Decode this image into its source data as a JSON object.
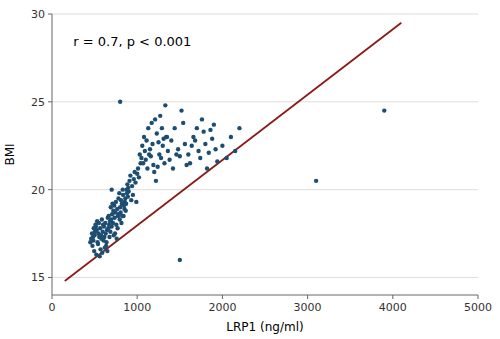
{
  "chart_data": {
    "type": "scatter",
    "annotation": "r = 0.7, p < 0.001",
    "xlabel": "LRP1 (ng/ml)",
    "ylabel": "BMI",
    "xlim": [
      0,
      5000
    ],
    "ylim": [
      14,
      30
    ],
    "xticks": [
      0,
      1000,
      2000,
      3000,
      4000,
      5000
    ],
    "yticks": [
      15,
      20,
      25,
      30
    ],
    "grid": "y",
    "series": [
      {
        "type": "scatter",
        "color": "#1d4e72",
        "x": [
          450,
          460,
          470,
          475,
          480,
          485,
          490,
          495,
          500,
          505,
          510,
          515,
          520,
          525,
          530,
          535,
          540,
          545,
          550,
          555,
          560,
          565,
          570,
          575,
          580,
          585,
          590,
          595,
          600,
          605,
          610,
          615,
          620,
          625,
          630,
          635,
          640,
          645,
          650,
          655,
          660,
          665,
          670,
          675,
          680,
          685,
          690,
          695,
          700,
          705,
          710,
          715,
          720,
          725,
          730,
          735,
          740,
          745,
          750,
          755,
          760,
          765,
          770,
          775,
          780,
          785,
          790,
          795,
          800,
          805,
          810,
          815,
          820,
          825,
          830,
          835,
          840,
          845,
          850,
          855,
          860,
          865,
          870,
          875,
          880,
          885,
          890,
          895,
          900,
          910,
          920,
          930,
          940,
          950,
          960,
          970,
          980,
          990,
          1000,
          1010,
          1020,
          1030,
          1040,
          1050,
          1060,
          1070,
          1080,
          1090,
          1100,
          1110,
          1120,
          1130,
          1140,
          1150,
          1160,
          1170,
          1180,
          1190,
          1200,
          1220,
          1240,
          1260,
          1280,
          1300,
          1320,
          1340,
          1360,
          1380,
          1400,
          1420,
          1440,
          1460,
          1480,
          1500,
          1520,
          1540,
          1560,
          1580,
          1600,
          1620,
          1640,
          1660,
          1680,
          1700,
          1720,
          1740,
          1760,
          1780,
          1800,
          1820,
          1840,
          1860,
          1880,
          1900,
          1920,
          1940,
          1210,
          1230,
          1250,
          1270,
          1290,
          1310,
          1330,
          1350,
          2000,
          2050,
          2100,
          2150,
          2200,
          700,
          800,
          1500,
          3900,
          3100
        ],
        "values": [
          17.0,
          17.2,
          17.5,
          16.8,
          17.3,
          17.1,
          17.8,
          16.5,
          17.4,
          17.6,
          18.0,
          17.9,
          16.3,
          17.7,
          18.2,
          17.0,
          16.9,
          17.5,
          18.1,
          17.3,
          16.2,
          17.8,
          16.6,
          17.4,
          17.2,
          18.3,
          16.4,
          17.6,
          18.0,
          17.1,
          17.9,
          17.3,
          16.7,
          18.1,
          17.5,
          16.8,
          17.0,
          17.7,
          16.5,
          18.4,
          17.8,
          18.5,
          18.0,
          17.3,
          18.2,
          17.6,
          19.0,
          18.3,
          17.9,
          18.6,
          19.2,
          18.1,
          18.8,
          17.4,
          19.1,
          18.4,
          17.5,
          18.7,
          19.3,
          18.0,
          17.2,
          18.9,
          17.8,
          18.5,
          19.5,
          18.6,
          19.8,
          18.3,
          19.0,
          18.7,
          19.4,
          18.1,
          19.2,
          18.5,
          20.0,
          19.7,
          18.5,
          19.1,
          18.9,
          19.3,
          19.5,
          18.8,
          19.2,
          20.0,
          19.8,
          20.3,
          19.6,
          20.1,
          19.9,
          20.5,
          20.8,
          19.4,
          20.2,
          19.7,
          20.6,
          21.0,
          20.4,
          19.3,
          20.9,
          21.2,
          20.7,
          22.0,
          21.5,
          21.8,
          22.5,
          21.5,
          23.0,
          22.2,
          21.7,
          22.8,
          21.2,
          23.5,
          22.0,
          22.3,
          21.9,
          23.8,
          22.6,
          21.4,
          21.0,
          20.5,
          21.3,
          22.0,
          21.8,
          22.5,
          21.5,
          23.0,
          22.2,
          21.7,
          22.8,
          21.2,
          23.5,
          22.0,
          22.3,
          21.9,
          24.5,
          23.8,
          22.6,
          21.4,
          22.0,
          21.5,
          22.5,
          23.0,
          22.8,
          23.5,
          22.2,
          21.8,
          24.0,
          23.3,
          22.6,
          21.2,
          22.1,
          23.4,
          22.9,
          23.7,
          22.3,
          21.6,
          24.0,
          23.2,
          22.7,
          24.2,
          23.5,
          22.9,
          24.8,
          23.0,
          22.5,
          21.8,
          23.0,
          22.2,
          23.5,
          20.0,
          25.0,
          16.0,
          24.5,
          20.5
        ]
      },
      {
        "type": "line",
        "color": "#8b1a1a",
        "x": [
          150,
          4100
        ],
        "values": [
          14.8,
          29.5
        ]
      }
    ]
  }
}
